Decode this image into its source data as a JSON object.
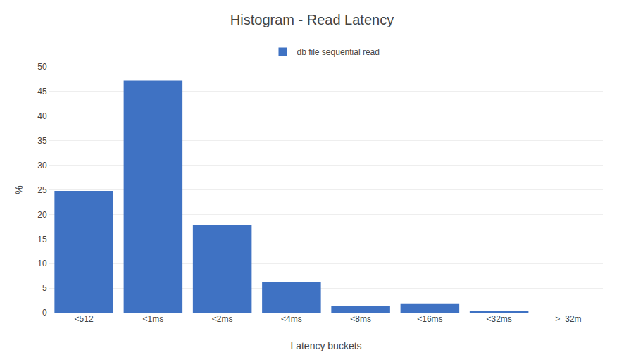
{
  "chart_data": {
    "type": "bar",
    "title": "Histogram - Read Latency",
    "xlabel": "Latency buckets",
    "ylabel": "%",
    "categories": [
      "<512",
      "<1ms",
      "<2ms",
      "<4ms",
      "<8ms",
      "<16ms",
      "<32ms",
      ">=32m"
    ],
    "series": [
      {
        "name": "db file sequential read",
        "color": "#3F72C3",
        "values": [
          24.8,
          47.2,
          17.9,
          6.2,
          1.3,
          1.9,
          0.4,
          0.0
        ]
      }
    ],
    "ylim": [
      0,
      50
    ],
    "yticks": [
      0,
      5,
      10,
      15,
      20,
      25,
      30,
      35,
      40,
      45,
      50
    ],
    "grid": true,
    "legend": "upper center"
  }
}
